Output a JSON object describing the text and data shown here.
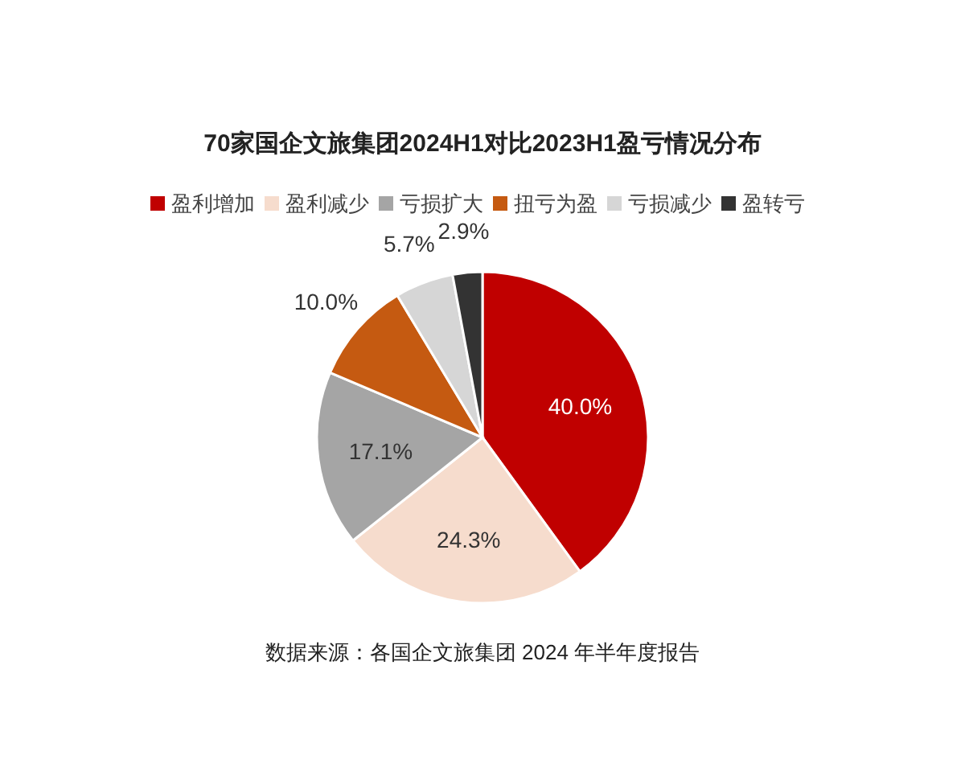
{
  "chart_data": {
    "type": "pie",
    "title": "70家国企文旅集团2024H1对比2023H1盈亏情况分布",
    "categories": [
      "盈利增加",
      "盈利减少",
      "亏损扩大",
      "扭亏为盈",
      "亏损减少",
      "盈转亏"
    ],
    "values": [
      40.0,
      24.3,
      17.1,
      10.0,
      5.7,
      2.9
    ],
    "colors": [
      "#c00000",
      "#f6dccd",
      "#a5a5a5",
      "#c55a11",
      "#d6d6d6",
      "#333333"
    ],
    "value_labels": [
      "40.0%",
      "24.3%",
      "17.1%",
      "10.0%",
      "5.7%",
      "2.9%"
    ],
    "legend": "top",
    "annotations": [
      "数据来源：各国企文旅集团 2024 年半年度报告"
    ]
  }
}
